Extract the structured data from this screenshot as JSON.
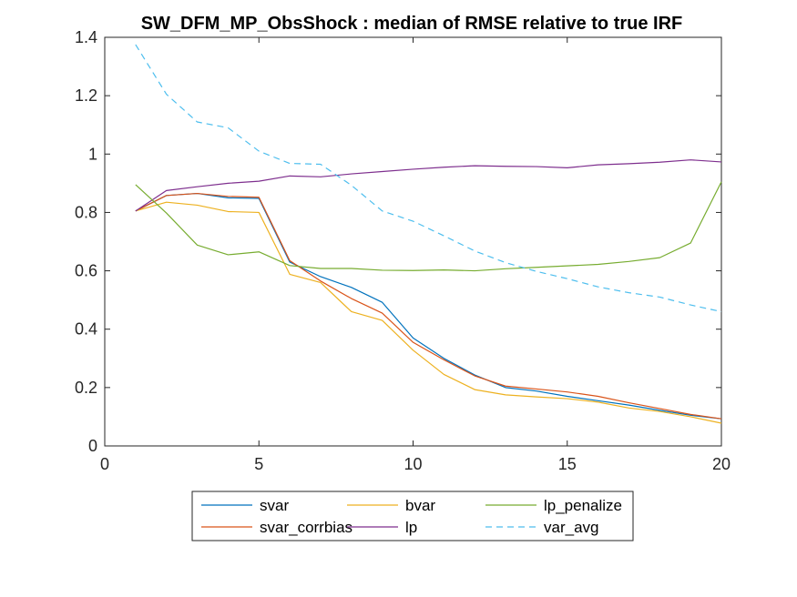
{
  "chart_data": {
    "type": "line",
    "title": "SW_DFM_MP_ObsShock : median of RMSE relative to true IRF",
    "xlabel": "",
    "ylabel": "",
    "xlim": [
      0,
      20
    ],
    "ylim": [
      0,
      1.4
    ],
    "xticks": [
      0,
      5,
      10,
      15,
      20
    ],
    "yticks": [
      0,
      0.2,
      0.4,
      0.6,
      0.8,
      1,
      1.2,
      1.4
    ],
    "xtick_labels": [
      "0",
      "5",
      "10",
      "15",
      "20"
    ],
    "ytick_labels": [
      "0",
      "0.2",
      "0.4",
      "0.6",
      "0.8",
      "1",
      "1.2",
      "1.4"
    ],
    "grid": false,
    "legend_position": "bottom-outside",
    "x": [
      1,
      2,
      3,
      4,
      5,
      6,
      7,
      8,
      9,
      10,
      11,
      12,
      13,
      14,
      15,
      16,
      17,
      18,
      19,
      20
    ],
    "series": [
      {
        "name": "svar",
        "color": "#0072BD",
        "dash": "solid",
        "values": [
          0.805,
          0.858,
          0.865,
          0.85,
          0.848,
          0.63,
          0.58,
          0.543,
          0.492,
          0.37,
          0.3,
          0.243,
          0.2,
          0.188,
          0.17,
          0.155,
          0.14,
          0.122,
          0.105,
          0.093
        ]
      },
      {
        "name": "svar_corrbias",
        "color": "#D95319",
        "dash": "solid",
        "values": [
          0.805,
          0.858,
          0.865,
          0.855,
          0.852,
          0.635,
          0.565,
          0.505,
          0.455,
          0.355,
          0.295,
          0.24,
          0.205,
          0.195,
          0.185,
          0.17,
          0.148,
          0.128,
          0.108,
          0.093
        ]
      },
      {
        "name": "bvar",
        "color": "#EDB120",
        "dash": "solid",
        "values": [
          0.805,
          0.835,
          0.825,
          0.803,
          0.8,
          0.588,
          0.56,
          0.46,
          0.43,
          0.328,
          0.245,
          0.193,
          0.175,
          0.168,
          0.162,
          0.15,
          0.13,
          0.118,
          0.1,
          0.078
        ]
      },
      {
        "name": "lp",
        "color": "#7E2F8E",
        "dash": "solid",
        "values": [
          0.805,
          0.875,
          0.888,
          0.9,
          0.907,
          0.925,
          0.922,
          0.932,
          0.94,
          0.948,
          0.955,
          0.96,
          0.958,
          0.957,
          0.953,
          0.963,
          0.967,
          0.972,
          0.98,
          0.973
        ]
      },
      {
        "name": "lp_penalize",
        "color": "#77AC30",
        "dash": "solid",
        "values": [
          0.895,
          0.798,
          0.688,
          0.655,
          0.665,
          0.618,
          0.608,
          0.608,
          0.602,
          0.601,
          0.603,
          0.6,
          0.607,
          0.612,
          0.617,
          0.622,
          0.632,
          0.645,
          0.695,
          0.905
        ]
      },
      {
        "name": "var_avg",
        "color": "#4DBEEE",
        "dash": "dashed",
        "values": [
          1.375,
          1.205,
          1.11,
          1.09,
          1.01,
          0.968,
          0.965,
          0.893,
          0.805,
          0.77,
          0.72,
          0.668,
          0.628,
          0.598,
          0.573,
          0.545,
          0.525,
          0.51,
          0.483,
          0.46
        ]
      }
    ],
    "legend_order": [
      "svar",
      "bvar",
      "lp_penalize",
      "svar_corrbias",
      "lp",
      "var_avg"
    ]
  }
}
